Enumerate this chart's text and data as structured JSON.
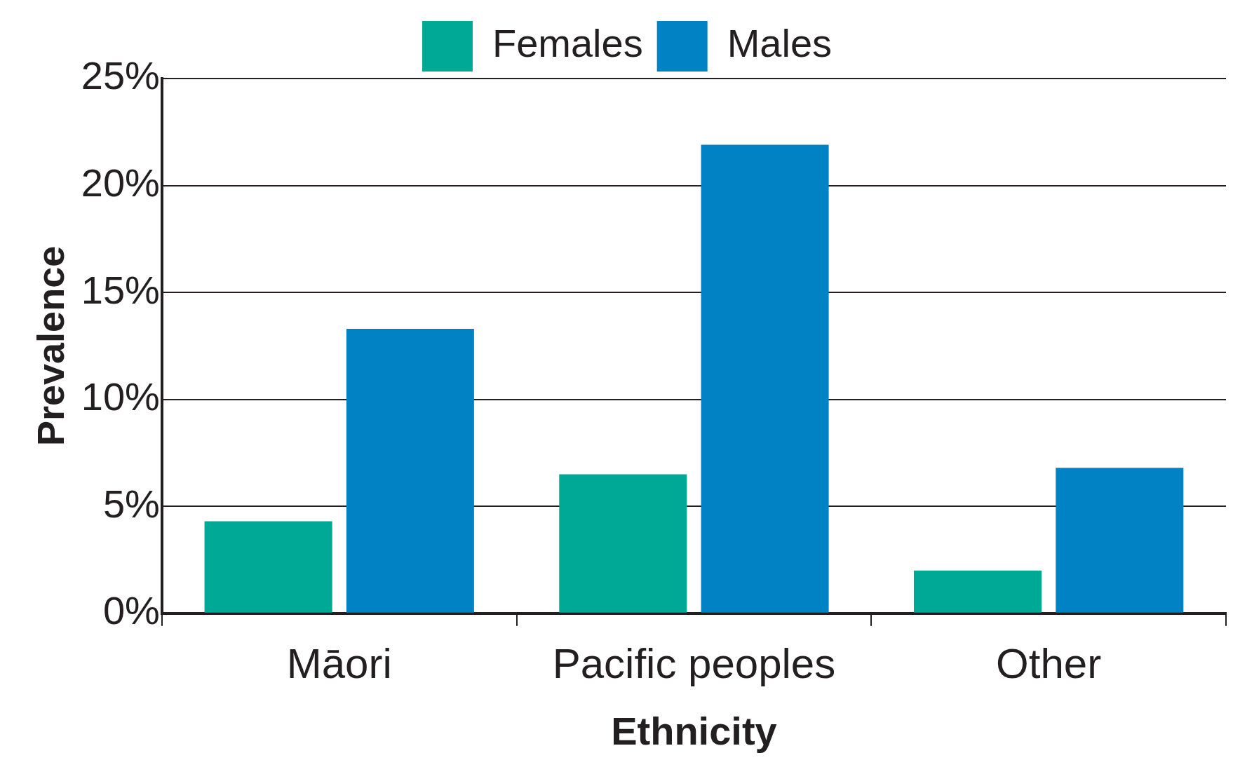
{
  "chart_data": {
    "type": "bar",
    "xlabel": "Ethnicity",
    "ylabel": "Prevalence",
    "categories": [
      "Māori",
      "Pacific peoples",
      "Other"
    ],
    "series": [
      {
        "name": "Females",
        "color": "#00a896",
        "values": [
          4.3,
          6.5,
          2.0
        ]
      },
      {
        "name": "Males",
        "color": "#0082c4",
        "values": [
          13.3,
          21.9,
          6.8
        ]
      }
    ],
    "ylim": [
      0,
      25
    ],
    "yticks": [
      {
        "value": 0,
        "label": "0%"
      },
      {
        "value": 5,
        "label": "5%"
      },
      {
        "value": 10,
        "label": "10%"
      },
      {
        "value": 15,
        "label": "15%"
      },
      {
        "value": 20,
        "label": "20%"
      },
      {
        "value": 25,
        "label": "25%"
      }
    ],
    "grid": "y",
    "legend": "top"
  }
}
